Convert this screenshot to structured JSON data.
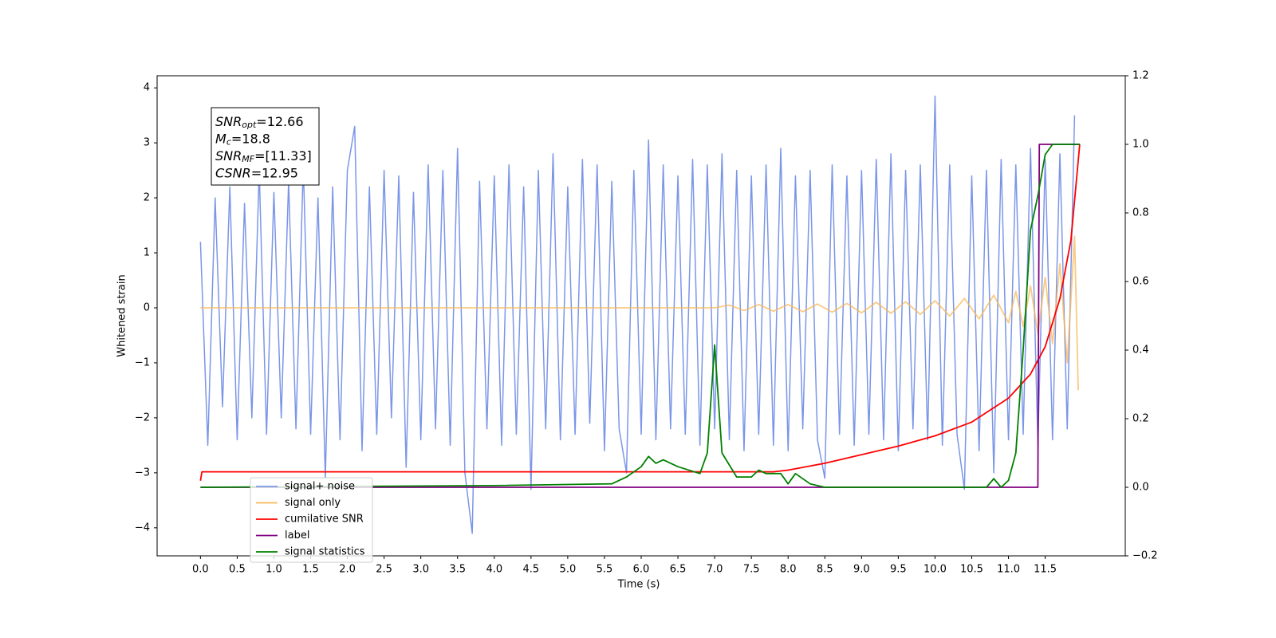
{
  "chart_data": {
    "type": "line",
    "xlabel": "Time (s)",
    "ylabel": "Whitened strain",
    "xlim": [
      -0.59,
      12.59
    ],
    "ylim": [
      -4.51,
      4.22
    ],
    "y2lim": [
      -0.2,
      1.2
    ],
    "xticks": [
      {
        "value": 0,
        "label": "0.0"
      },
      0.5,
      {
        "value": 1,
        "label": "1.0"
      },
      1.5,
      {
        "value": 2,
        "label": "2.0"
      },
      2.5,
      {
        "value": 3,
        "label": "3.0"
      },
      3.5,
      {
        "value": 4,
        "label": "4.0"
      },
      4.5,
      {
        "value": 5,
        "label": "5.0"
      },
      5.5,
      {
        "value": 6,
        "label": "6.0"
      },
      6.5,
      {
        "value": 7,
        "label": "7.0"
      },
      7.5,
      {
        "value": 8,
        "label": "8.0"
      },
      8.5,
      {
        "value": 9,
        "label": "9.0"
      },
      9.5,
      {
        "value": 10,
        "label": "10.0"
      },
      10.5,
      {
        "value": 11,
        "label": "11.0"
      },
      11.5
    ],
    "yticks": [
      {
        "value": -4,
        "label": "−4"
      },
      {
        "value": -3,
        "label": "−3"
      },
      {
        "value": -2,
        "label": "−2"
      },
      {
        "value": -1,
        "label": "−1"
      },
      0,
      1,
      2,
      3,
      4
    ],
    "y2ticks": [
      {
        "value": -0.2,
        "label": "−0.2"
      },
      {
        "value": 0,
        "label": "0.0"
      },
      0.2,
      0.4,
      0.6,
      0.8,
      {
        "value": 1,
        "label": "1.0"
      },
      1.2
    ],
    "annotation": [
      {
        "symbol": "SNR",
        "sub": "opt",
        "text": "=12.66"
      },
      {
        "symbol": "M",
        "sub": "c",
        "text": "=18.8"
      },
      {
        "symbol": "SNR",
        "sub": "MF",
        "text": "=[11.33]"
      },
      {
        "symbol": "CSNR",
        "text": "=12.95"
      }
    ],
    "series": [
      {
        "name": "signal+ noise",
        "color": "#7b96e8",
        "axis": "y",
        "x": [
          0.0,
          0.1,
          0.2,
          0.3,
          0.4,
          0.5,
          0.6,
          0.7,
          0.8,
          0.9,
          1.0,
          1.1,
          1.2,
          1.3,
          1.4,
          1.5,
          1.6,
          1.7,
          1.8,
          1.9,
          2.0,
          2.1,
          2.2,
          2.3,
          2.4,
          2.5,
          2.6,
          2.7,
          2.8,
          2.9,
          3.0,
          3.1,
          3.2,
          3.3,
          3.4,
          3.5,
          3.6,
          3.7,
          3.8,
          3.9,
          4.0,
          4.1,
          4.2,
          4.3,
          4.4,
          4.5,
          4.6,
          4.7,
          4.8,
          4.9,
          5.0,
          5.1,
          5.2,
          5.3,
          5.4,
          5.5,
          5.6,
          5.7,
          5.8,
          5.9,
          6.0,
          6.1,
          6.2,
          6.3,
          6.4,
          6.5,
          6.6,
          6.7,
          6.8,
          6.9,
          7.0,
          7.1,
          7.2,
          7.3,
          7.4,
          7.5,
          7.6,
          7.7,
          7.8,
          7.9,
          8.0,
          8.1,
          8.2,
          8.3,
          8.4,
          8.5,
          8.6,
          8.7,
          8.8,
          8.9,
          9.0,
          9.1,
          9.2,
          9.3,
          9.4,
          9.5,
          9.6,
          9.7,
          9.8,
          9.9,
          10.0,
          10.1,
          10.2,
          10.3,
          10.4,
          10.5,
          10.6,
          10.7,
          10.8,
          10.9,
          11.0,
          11.1,
          11.2,
          11.3,
          11.4,
          11.5,
          11.6,
          11.7,
          11.8,
          11.9
        ],
        "values": [
          1.2,
          -2.5,
          2.0,
          -1.8,
          2.2,
          -2.4,
          1.9,
          -2.0,
          2.5,
          -2.3,
          2.1,
          -2.0,
          2.3,
          -2.2,
          2.6,
          -2.3,
          2.0,
          -3.1,
          2.2,
          -2.4,
          2.5,
          3.3,
          -2.6,
          2.2,
          -2.3,
          2.5,
          -2.0,
          2.4,
          -2.9,
          2.1,
          -2.4,
          2.6,
          -2.2,
          2.5,
          -2.5,
          2.9,
          -3.0,
          -4.1,
          2.3,
          -2.2,
          2.4,
          -2.5,
          2.6,
          -2.3,
          2.2,
          -3.3,
          2.5,
          -2.2,
          2.8,
          -2.4,
          2.2,
          -2.3,
          2.7,
          -2.1,
          2.6,
          -2.6,
          2.3,
          -2.2,
          -3.0,
          2.5,
          -2.3,
          3.05,
          -2.4,
          2.6,
          -2.2,
          2.4,
          -2.3,
          2.7,
          -2.5,
          2.6,
          -2.2,
          2.8,
          -2.4,
          2.5,
          -2.6,
          2.4,
          -2.3,
          2.6,
          -2.5,
          2.9,
          -2.6,
          2.4,
          -2.2,
          2.5,
          -2.4,
          -3.1,
          2.6,
          -2.3,
          2.4,
          -2.5,
          2.5,
          -2.3,
          2.7,
          -2.4,
          2.8,
          -2.6,
          2.5,
          -2.2,
          2.6,
          -2.4,
          3.85,
          -2.5,
          2.6,
          -2.3,
          -3.3,
          2.4,
          -2.6,
          2.5,
          -3.0,
          2.7,
          -2.4,
          2.6,
          -2.3,
          2.9,
          -2.5,
          2.7,
          -2.4,
          2.8,
          -2.2,
          3.5
        ]
      },
      {
        "name": "signal only",
        "color": "#f7b85a",
        "axis": "y",
        "x": [
          0.0,
          7.0,
          7.2,
          7.4,
          7.6,
          7.8,
          8.0,
          8.2,
          8.4,
          8.6,
          8.8,
          9.0,
          9.2,
          9.4,
          9.6,
          9.8,
          10.0,
          10.2,
          10.4,
          10.6,
          10.8,
          11.0,
          11.1,
          11.2,
          11.3,
          11.4,
          11.5,
          11.6,
          11.7,
          11.8,
          11.9,
          11.95
        ],
        "values": [
          0,
          0,
          0.05,
          -0.05,
          0.06,
          -0.06,
          0.06,
          -0.07,
          0.07,
          -0.08,
          0.08,
          -0.09,
          0.1,
          -0.1,
          0.11,
          -0.12,
          0.13,
          -0.15,
          0.17,
          -0.2,
          0.23,
          -0.27,
          0.3,
          -0.34,
          0.4,
          -0.46,
          0.55,
          -0.65,
          0.8,
          -1.0,
          1.3,
          -1.5
        ]
      },
      {
        "name": "cumilative SNR",
        "color": "#ff0000",
        "axis": "y2",
        "x": [
          0.0,
          0.02,
          7.8,
          8.0,
          8.5,
          9.0,
          9.5,
          10.0,
          10.5,
          11.0,
          11.3,
          11.5,
          11.7,
          11.85,
          11.97
        ],
        "values": [
          0.019,
          0.045,
          0.045,
          0.05,
          0.07,
          0.095,
          0.12,
          0.15,
          0.19,
          0.26,
          0.33,
          0.41,
          0.55,
          0.72,
          1.0
        ]
      },
      {
        "name": "label",
        "color": "#800080",
        "axis": "y2",
        "x": [
          0.0,
          11.4,
          11.42,
          11.97
        ],
        "values": [
          0,
          0,
          1,
          1
        ]
      },
      {
        "name": "signal statistics",
        "color": "#008000",
        "axis": "y2",
        "x": [
          0.0,
          4.0,
          5.6,
          5.8,
          6.0,
          6.1,
          6.2,
          6.3,
          6.5,
          6.8,
          6.9,
          7.0,
          7.1,
          7.3,
          7.5,
          7.6,
          7.7,
          7.9,
          8.0,
          8.1,
          8.3,
          8.5,
          10.7,
          10.8,
          10.9,
          11.0,
          11.1,
          11.2,
          11.3,
          11.4,
          11.5,
          11.6,
          11.97
        ],
        "values": [
          0,
          0.005,
          0.01,
          0.03,
          0.06,
          0.09,
          0.07,
          0.08,
          0.06,
          0.04,
          0.1,
          0.415,
          0.1,
          0.03,
          0.03,
          0.05,
          0.04,
          0.04,
          0.01,
          0.04,
          0.01,
          0,
          0,
          0.025,
          0,
          0.02,
          0.1,
          0.4,
          0.75,
          0.85,
          0.97,
          1.0,
          1.0
        ]
      }
    ]
  }
}
